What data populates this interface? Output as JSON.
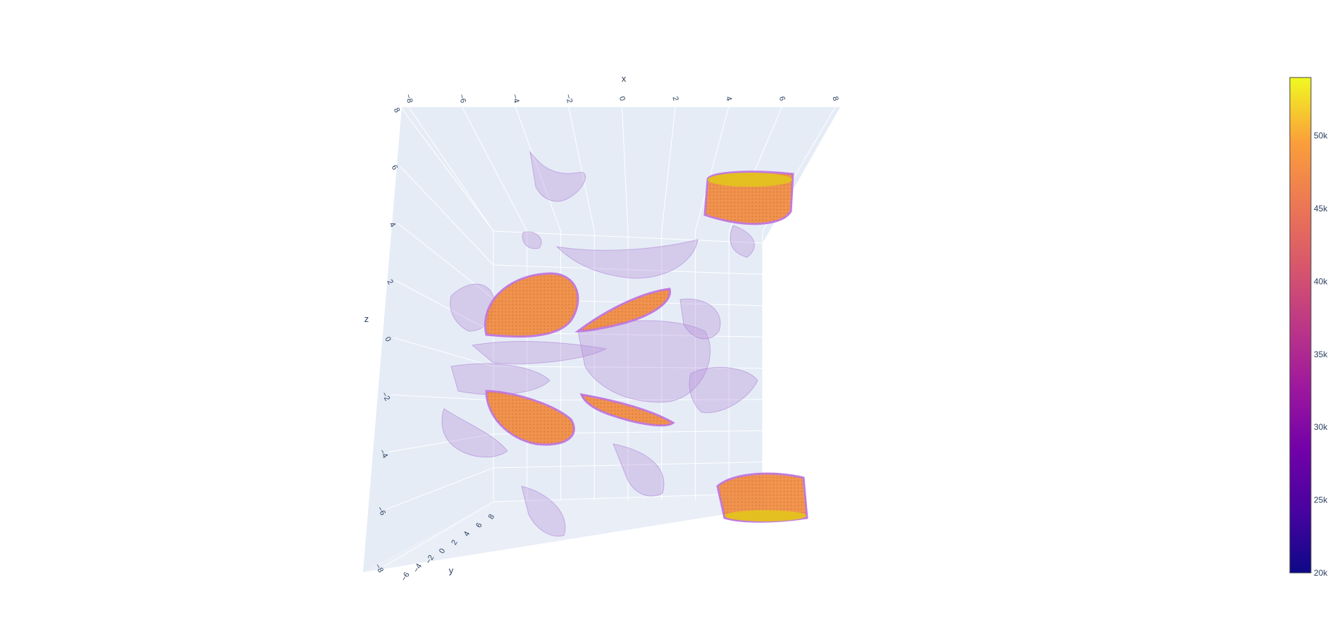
{
  "chart_data": {
    "type": "isosurface",
    "title": "",
    "axes": {
      "x": {
        "title": "x",
        "range": [
          -8,
          8
        ],
        "ticks": [
          "−8",
          "−6",
          "−4",
          "−2",
          "0",
          "2",
          "4",
          "6",
          "8"
        ]
      },
      "y": {
        "title": "y",
        "range": [
          -8,
          8
        ],
        "ticks": [
          "−6",
          "−4",
          "−2",
          "0",
          "2",
          "4",
          "6",
          "8"
        ]
      },
      "z": {
        "title": "z",
        "range": [
          -8,
          8
        ],
        "ticks": [
          "−8",
          "−6",
          "−4",
          "−2",
          "0",
          "2",
          "4",
          "6",
          "8"
        ]
      }
    },
    "grid": true,
    "colorscale": "plasma",
    "colorbar": {
      "range": [
        20000,
        54000
      ],
      "ticks": [
        "20k",
        "25k",
        "30k",
        "35k",
        "40k",
        "45k",
        "50k"
      ],
      "tick_values": [
        20000,
        25000,
        30000,
        35000,
        40000,
        45000,
        50000
      ]
    },
    "colors": {
      "background_plane": "#e5ecf6",
      "grid": "#ffffff",
      "text": "#2a3f5f",
      "low_surface": "#b48fd8",
      "high_surface": "#f08a3c"
    }
  }
}
